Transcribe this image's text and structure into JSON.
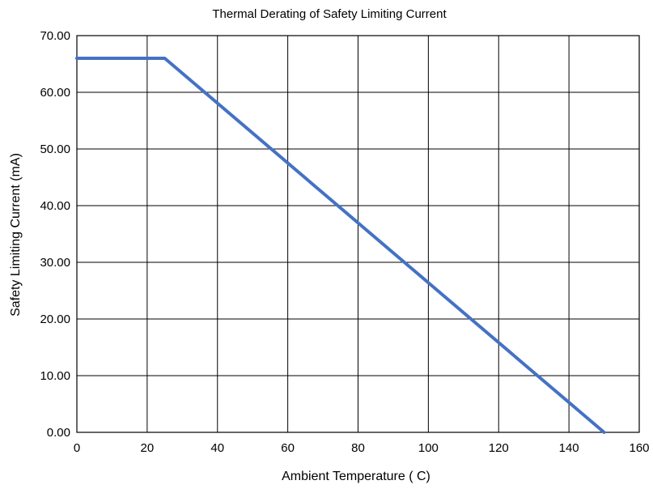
{
  "chart_data": {
    "type": "line",
    "title": "Thermal Derating of Safety Limiting Current",
    "xlabel": "Ambient Temperature (  C)",
    "ylabel": "Safety Limiting Current (mA)",
    "xlim": [
      0,
      160
    ],
    "ylim": [
      0,
      70
    ],
    "x_ticks": [
      "0",
      "20",
      "40",
      "60",
      "80",
      "100",
      "120",
      "140",
      "160"
    ],
    "y_ticks": [
      "0.00",
      "10.00",
      "20.00",
      "30.00",
      "40.00",
      "50.00",
      "60.00",
      "70.00"
    ],
    "grid": true,
    "legend": "none",
    "series": [
      {
        "color": "#4472C4",
        "x": [
          0,
          25,
          150
        ],
        "y": [
          66,
          66,
          0
        ]
      }
    ]
  }
}
